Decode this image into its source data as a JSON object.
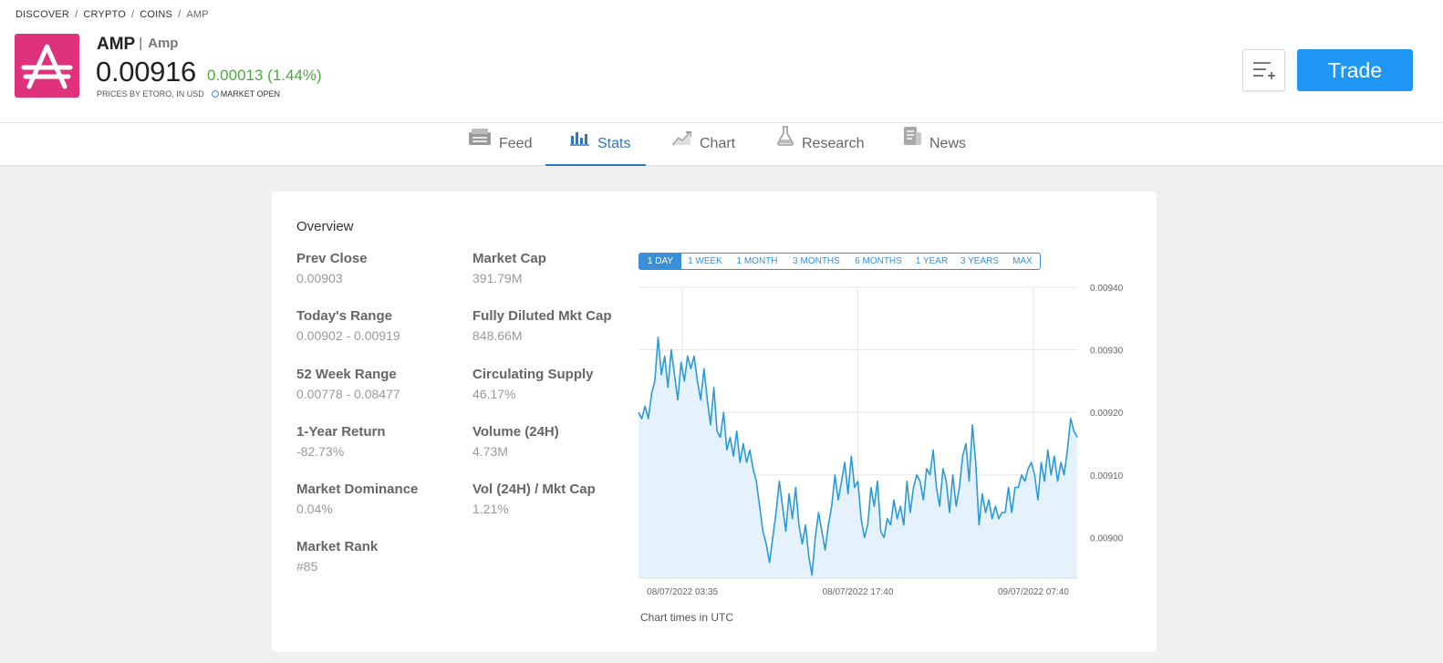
{
  "breadcrumb": [
    "DISCOVER",
    "CRYPTO",
    "COINS",
    "AMP"
  ],
  "instrument": {
    "symbol": "AMP",
    "name": "Amp",
    "price": "0.00916",
    "change": "0.00013 (1.44%)",
    "prices_by": "PRICES BY ETORO, IN USD",
    "market_status": "MARKET OPEN",
    "logo_color": "#e0327c"
  },
  "actions": {
    "trade_label": "Trade",
    "watchlist_icon": "add-to-watchlist-icon"
  },
  "tabs": [
    {
      "label": "Feed",
      "icon": "feed-icon"
    },
    {
      "label": "Stats",
      "icon": "stats-icon",
      "active": true
    },
    {
      "label": "Chart",
      "icon": "chart-icon"
    },
    {
      "label": "Research",
      "icon": "research-flask-icon"
    },
    {
      "label": "News",
      "icon": "news-icon"
    }
  ],
  "overview": {
    "title": "Overview",
    "left": [
      {
        "label": "Prev Close",
        "value": "0.00903"
      },
      {
        "label": "Today's Range",
        "value": "0.00902 - 0.00919"
      },
      {
        "label": "52 Week Range",
        "value": "0.00778 - 0.08477"
      },
      {
        "label": "1-Year Return",
        "value": "-82.73%"
      },
      {
        "label": "Market Dominance",
        "value": "0.04%"
      },
      {
        "label": "Market Rank",
        "value": "#85"
      }
    ],
    "right": [
      {
        "label": "Market Cap",
        "value": "391.79M"
      },
      {
        "label": "Fully Diluted Mkt Cap",
        "value": "848.66M"
      },
      {
        "label": "Circulating Supply",
        "value": "46.17%"
      },
      {
        "label": "Volume (24H)",
        "value": "4.73M"
      },
      {
        "label": "Vol (24H) / Mkt Cap",
        "value": "1.21%"
      }
    ]
  },
  "range_buttons": [
    "1 DAY",
    "1 WEEK",
    "1 MONTH",
    "3 MONTHS",
    "6 MONTHS",
    "1 YEAR",
    "3 YEARS",
    "MAX"
  ],
  "chart_note": "Chart times in UTC",
  "chart_data": {
    "type": "area",
    "title": "",
    "xlabel": "",
    "ylabel": "",
    "ylim": [
      0.008935,
      0.0094
    ],
    "yticks": [
      "0.00940",
      "0.00930",
      "0.00920",
      "0.00910",
      "0.00900"
    ],
    "ytick_values": [
      0.0094,
      0.0093,
      0.0092,
      0.0091,
      0.009
    ],
    "xticks": [
      "08/07/2022 03:35",
      "08/07/2022 17:40",
      "09/07/2022 07:40"
    ],
    "xtick_positions": [
      0.1,
      0.5,
      0.9
    ],
    "line_color": "#2b9ad6",
    "fill_color": "#e6f2fb",
    "grid": true,
    "series": [
      {
        "values": [
          0.0092,
          0.00919,
          0.00921,
          0.00919,
          0.00923,
          0.00925,
          0.00932,
          0.00926,
          0.00929,
          0.00924,
          0.0093,
          0.00926,
          0.00922,
          0.00928,
          0.00925,
          0.00929,
          0.00927,
          0.00929,
          0.00925,
          0.00922,
          0.00927,
          0.00922,
          0.00918,
          0.00924,
          0.00917,
          0.00916,
          0.0092,
          0.00914,
          0.00916,
          0.00913,
          0.00917,
          0.00912,
          0.00915,
          0.00912,
          0.00914,
          0.00911,
          0.00909,
          0.00905,
          0.00901,
          0.00899,
          0.00896,
          0.009,
          0.00904,
          0.00909,
          0.00905,
          0.00901,
          0.00907,
          0.00903,
          0.00908,
          0.00902,
          0.00899,
          0.00902,
          0.00897,
          0.00894,
          0.009,
          0.00904,
          0.00901,
          0.00898,
          0.00902,
          0.00905,
          0.0091,
          0.00906,
          0.00909,
          0.00912,
          0.00907,
          0.00913,
          0.00908,
          0.00909,
          0.00903,
          0.009,
          0.00902,
          0.00908,
          0.00905,
          0.00909,
          0.00901,
          0.009,
          0.00903,
          0.00902,
          0.00906,
          0.00903,
          0.00905,
          0.00902,
          0.00909,
          0.00904,
          0.00908,
          0.0091,
          0.00909,
          0.00906,
          0.00911,
          0.0091,
          0.00914,
          0.00908,
          0.00905,
          0.00911,
          0.00909,
          0.00904,
          0.0091,
          0.00905,
          0.00908,
          0.00913,
          0.00915,
          0.00909,
          0.00918,
          0.00912,
          0.00902,
          0.00907,
          0.00904,
          0.00906,
          0.00903,
          0.00905,
          0.00903,
          0.00904,
          0.00904,
          0.00908,
          0.00904,
          0.00908,
          0.00908,
          0.0091,
          0.00909,
          0.00911,
          0.00912,
          0.0091,
          0.00906,
          0.00912,
          0.00909,
          0.00914,
          0.0091,
          0.00913,
          0.00909,
          0.00912,
          0.0091,
          0.00914,
          0.00919,
          0.00917,
          0.00916
        ]
      }
    ]
  }
}
